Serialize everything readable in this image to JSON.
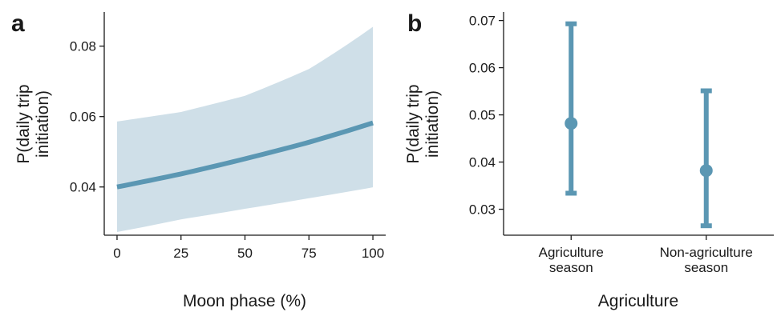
{
  "colors": {
    "line": "#5b97b3",
    "band": "#cfdfe8",
    "axis": "#1a1a1a"
  },
  "chart_data": [
    {
      "panel": "a",
      "type": "line",
      "xlabel": "Moon phase (%)",
      "ylabel_lines": [
        "P(daily trip",
        "initiation)"
      ],
      "xlim": [
        -5,
        105
      ],
      "ylim": [
        0.0263,
        0.0897
      ],
      "xticks": [
        0,
        25,
        50,
        75,
        100
      ],
      "xtick_labels": [
        "0",
        "25",
        "50",
        "75",
        "100"
      ],
      "yticks": [
        0.04,
        0.06,
        0.08
      ],
      "ytick_labels": [
        "0.04",
        "0.06",
        "0.08"
      ],
      "series": [
        {
          "x": [
            0,
            25,
            50,
            75,
            100
          ],
          "y": [
            0.04,
            0.0437,
            0.048,
            0.0527,
            0.0582
          ],
          "lower": [
            0.0272,
            0.0308,
            0.0338,
            0.0368,
            0.0399
          ],
          "upper": [
            0.0586,
            0.0613,
            0.0659,
            0.0735,
            0.0855
          ]
        }
      ]
    },
    {
      "panel": "b",
      "type": "errorbar",
      "xlabel": "Agriculture",
      "ylabel_lines": [
        "P(daily trip",
        "initiation)"
      ],
      "ylim": [
        0.0245,
        0.0718
      ],
      "yticks": [
        0.03,
        0.04,
        0.05,
        0.06,
        0.07
      ],
      "ytick_labels": [
        "0.03",
        "0.04",
        "0.05",
        "0.06",
        "0.07"
      ],
      "categories": [
        {
          "lines": [
            "Agriculture",
            "season"
          ],
          "value": 0.0482,
          "lower": 0.0334,
          "upper": 0.0693
        },
        {
          "lines": [
            "Non-agriculture",
            "season"
          ],
          "value": 0.0382,
          "lower": 0.0265,
          "upper": 0.0551
        }
      ]
    }
  ]
}
